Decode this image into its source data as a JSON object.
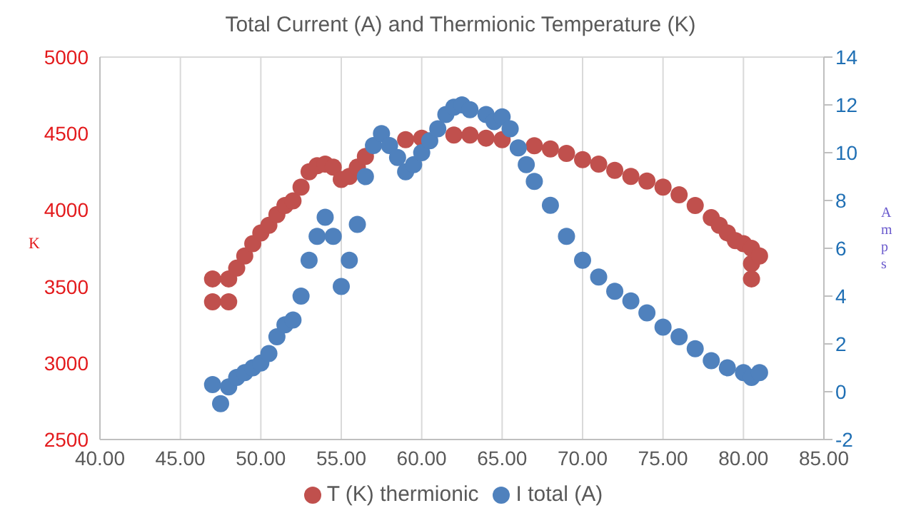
{
  "chart_data": {
    "type": "scatter",
    "title": "Total Current (A) and Thermionic Temperature (K)",
    "ylabel": "K",
    "y2label": "Amps",
    "xlim": [
      40,
      85
    ],
    "xticks": [
      {
        "value": 40,
        "label": "40.00"
      },
      {
        "value": 45,
        "label": "45.00"
      },
      {
        "value": 50,
        "label": "50.00"
      },
      {
        "value": 55,
        "label": "55.00"
      },
      {
        "value": 60,
        "label": "60.00"
      },
      {
        "value": 65,
        "label": "65.00"
      },
      {
        "value": 70,
        "label": "70.00"
      },
      {
        "value": 75,
        "label": "75.00"
      },
      {
        "value": 80,
        "label": "80.00"
      },
      {
        "value": 85,
        "label": "85.00"
      }
    ],
    "ylim": [
      2500,
      5000
    ],
    "yticks": [
      2500,
      3000,
      3500,
      4000,
      4500,
      5000
    ],
    "y2lim": [
      -2,
      14
    ],
    "y2ticks": [
      -2,
      0,
      2,
      4,
      6,
      8,
      10,
      12,
      14
    ],
    "grid": true,
    "legend": "bottom",
    "marker": "circle",
    "series": [
      {
        "name": "T (K) thermionic",
        "color": "#c0504d",
        "x": [
          47,
          47,
          48,
          48,
          48.5,
          49,
          49.5,
          50,
          50.5,
          51,
          51.5,
          52,
          52.5,
          53,
          53.5,
          54,
          54.5,
          55,
          55.5,
          56,
          56.5,
          57,
          58,
          59,
          60,
          61,
          62,
          63,
          64,
          65,
          66,
          67,
          68,
          69,
          70,
          71,
          72,
          73,
          74,
          75,
          76,
          77,
          78,
          78.5,
          79,
          79.5,
          80,
          80.5,
          80.5,
          80.5,
          81
        ],
        "values": [
          3550,
          3400,
          3400,
          3550,
          3620,
          3700,
          3780,
          3850,
          3900,
          3970,
          4030,
          4060,
          4150,
          4250,
          4290,
          4300,
          4280,
          4200,
          4220,
          4280,
          4350,
          null,
          null,
          4460,
          4470,
          null,
          4490,
          4490,
          4470,
          4460,
          null,
          4420,
          4400,
          4370,
          4330,
          4300,
          4260,
          4220,
          4190,
          4150,
          4100,
          4030,
          3950,
          3900,
          3850,
          3800,
          3780,
          3750,
          3650,
          3550,
          3700
        ]
      },
      {
        "name": "I total (A)",
        "color": "#4f81bd",
        "axis": "y2",
        "x": [
          47,
          47.5,
          48,
          48.5,
          49,
          49.5,
          50,
          50.5,
          51,
          51.5,
          52,
          52.5,
          53,
          53.5,
          54,
          54.5,
          55,
          55.5,
          56,
          56.5,
          57,
          57.5,
          58,
          58.5,
          59,
          59.5,
          60,
          60.5,
          61,
          61.5,
          62,
          62.5,
          63,
          64,
          64.5,
          65,
          65.5,
          66,
          66.5,
          67,
          68,
          69,
          70,
          71,
          72,
          73,
          74,
          75,
          76,
          77,
          78,
          79,
          80,
          80.5,
          81
        ],
        "values": [
          0.3,
          -0.5,
          0.2,
          0.6,
          0.8,
          1.0,
          1.2,
          1.6,
          2.3,
          2.8,
          3.0,
          4.0,
          5.5,
          6.5,
          7.3,
          6.5,
          4.4,
          5.5,
          7,
          9,
          10.3,
          10.8,
          10.3,
          9.8,
          9.2,
          9.5,
          10,
          10.5,
          11,
          11.6,
          11.9,
          12.0,
          11.8,
          11.6,
          11.3,
          11.5,
          11.0,
          10.2,
          9.5,
          8.8,
          7.8,
          6.5,
          5.5,
          4.8,
          4.2,
          3.8,
          3.3,
          2.7,
          2.3,
          1.8,
          1.3,
          1.0,
          0.8,
          0.6,
          0.8
        ]
      }
    ]
  }
}
